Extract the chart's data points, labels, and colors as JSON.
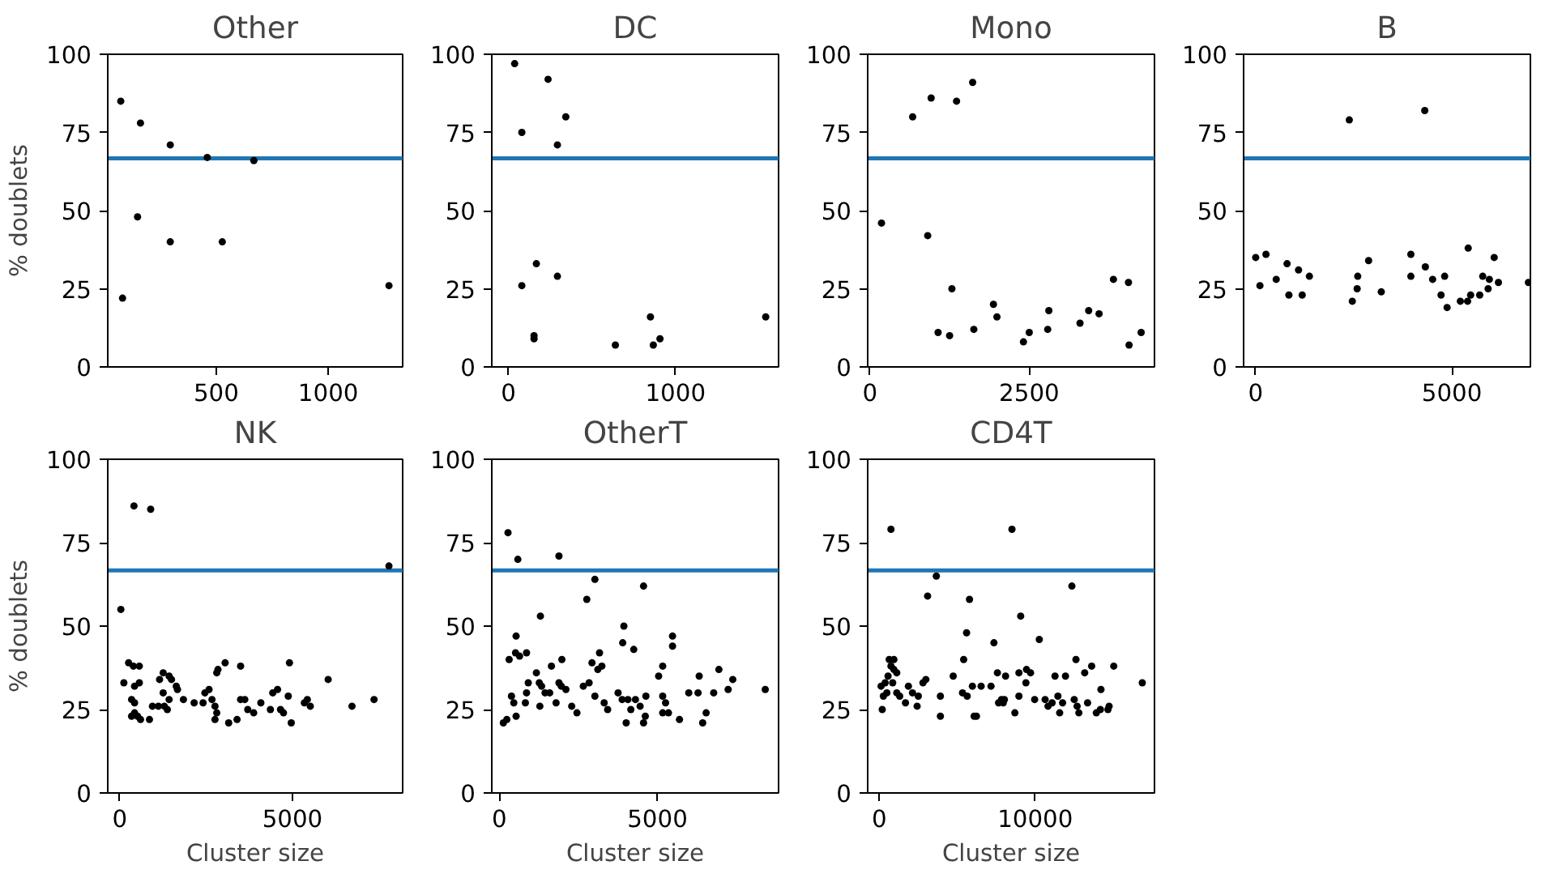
{
  "chart_data": [
    {
      "type": "scatter",
      "title": "Other",
      "ylabel": "% doublets",
      "color": "#000000",
      "marker": "circle",
      "grid": false,
      "xlim": [
        16,
        1332
      ],
      "xticks": [
        500,
        1000
      ],
      "ylim": [
        0,
        100
      ],
      "yticks": [
        0,
        25,
        50,
        75,
        100
      ],
      "ref_lines": [
        {
          "axis": "y",
          "value": 66.7,
          "color": "#1f77b4"
        }
      ],
      "x": [
        74,
        162,
        295,
        460,
        668,
        149,
        295,
        527,
        82,
        1271
      ],
      "values": [
        85,
        78,
        71,
        67,
        66,
        48,
        40,
        40,
        22,
        26
      ]
    },
    {
      "type": "scatter",
      "title": "DC",
      "color": "#000000",
      "marker": "circle",
      "grid": false,
      "xlim": [
        -100,
        1617
      ],
      "xticks": [
        0,
        1000
      ],
      "ylim": [
        0,
        100
      ],
      "yticks": [
        0,
        25,
        50,
        75,
        100
      ],
      "ref_lines": [
        {
          "axis": "y",
          "value": 66.7,
          "color": "#1f77b4"
        }
      ],
      "x": [
        37,
        237,
        343,
        293,
        80,
        167,
        80,
        293,
        153,
        153,
        640,
        850,
        867,
        907,
        1540
      ],
      "values": [
        97,
        92,
        80,
        71,
        75,
        33,
        26,
        29,
        10,
        9,
        7,
        16,
        7,
        9,
        16
      ]
    },
    {
      "type": "scatter",
      "title": "Mono",
      "color": "#000000",
      "marker": "circle",
      "grid": false,
      "xlim": [
        -36,
        4466
      ],
      "xticks": [
        0,
        2500
      ],
      "ylim": [
        0,
        100
      ],
      "yticks": [
        0,
        25,
        50,
        75,
        100
      ],
      "ref_lines": [
        {
          "axis": "y",
          "value": 66.7,
          "color": "#1f77b4"
        }
      ],
      "x": [
        181,
        670,
        960,
        906,
        1359,
        1612,
        1069,
        1250,
        1286,
        1630,
        1938,
        1993,
        2409,
        2500,
        2790,
        2808,
        3297,
        3433,
        3596,
        3822,
        4058,
        4067,
        4257
      ],
      "values": [
        46,
        80,
        86,
        42,
        85,
        91,
        11,
        10,
        25,
        12,
        20,
        16,
        8,
        11,
        12,
        18,
        14,
        18,
        17,
        28,
        27,
        7,
        11
      ]
    },
    {
      "type": "scatter",
      "title": "B",
      "color": "#000000",
      "marker": "circle",
      "grid": false,
      "xlim": [
        -308,
        7000
      ],
      "xticks": [
        0,
        5000
      ],
      "ylim": [
        0,
        100
      ],
      "yticks": [
        0,
        25,
        50,
        75,
        100
      ],
      "ref_lines": [
        {
          "axis": "y",
          "value": 66.7,
          "color": "#1f77b4"
        }
      ],
      "x": [
        0,
        262,
        108,
        523,
        800,
        846,
        1092,
        1185,
        1369,
        2385,
        2462,
        2585,
        2600,
        2877,
        3200,
        3954,
        3954,
        4308,
        4323,
        4508,
        4723,
        4815,
        4877,
        5215,
        5415,
        5400,
        5477,
        5708,
        5785,
        5923,
        5954,
        6077,
        6185,
        6950
      ],
      "values": [
        35,
        36,
        26,
        28,
        33,
        23,
        31,
        23,
        29,
        79,
        21,
        25,
        29,
        34,
        24,
        36,
        29,
        82,
        32,
        28,
        23,
        29,
        19,
        21,
        38,
        21,
        23,
        23,
        29,
        25,
        28,
        35,
        27,
        27
      ]
    },
    {
      "type": "scatter",
      "title": "NK",
      "ylabel": "% doublets",
      "xlabel": "Cluster size",
      "color": "#000000",
      "marker": "circle",
      "grid": false,
      "xlim": [
        -345,
        8190
      ],
      "xticks": [
        0,
        5000
      ],
      "ylim": [
        0,
        100
      ],
      "yticks": [
        0,
        25,
        50,
        75,
        100
      ],
      "ref_lines": [
        {
          "axis": "y",
          "value": 66.7,
          "color": "#1f77b4"
        }
      ],
      "x": [
        414,
        897,
        7793,
        34,
        121,
        259,
        397,
        569,
        431,
        569,
        345,
        431,
        345,
        517,
        603,
        431,
        862,
        948,
        1121,
        1155,
        1259,
        1431,
        1500,
        1259,
        1293,
        1379,
        1431,
        1638,
        1672,
        1845,
        2155,
        2414,
        2466,
        2586,
        2672,
        2759,
        2810,
        2810,
        2759,
        2845,
        3052,
        3155,
        3397,
        3500,
        3500,
        3621,
        3707,
        3879,
        4086,
        4362,
        4431,
        4569,
        4655,
        4741,
        4879,
        4914,
        4966,
        5345,
        5431,
        5517,
        6034,
        6724,
        7362
      ],
      "values": [
        86,
        85,
        68,
        55,
        33,
        39,
        38,
        38,
        32,
        33,
        28,
        27,
        23,
        23,
        22,
        24,
        22,
        26,
        26,
        34,
        36,
        35,
        34,
        30,
        26,
        25,
        28,
        32,
        31,
        28,
        27,
        27,
        30,
        31,
        28,
        26,
        36,
        24,
        22,
        37,
        39,
        21,
        22,
        38,
        28,
        28,
        25,
        24,
        27,
        25,
        30,
        31,
        25,
        24,
        29,
        39,
        21,
        27,
        28,
        26,
        34,
        26,
        28
      ]
    },
    {
      "type": "scatter",
      "title": "OtherT",
      "xlabel": "Cluster size",
      "color": "#000000",
      "marker": "circle",
      "grid": false,
      "xlim": [
        -238,
        8828
      ],
      "xticks": [
        0,
        5000
      ],
      "ylim": [
        0,
        100
      ],
      "yticks": [
        0,
        25,
        50,
        75,
        100
      ],
      "ref_lines": [
        {
          "axis": "y",
          "value": 66.7,
          "color": "#1f77b4"
        }
      ],
      "x": [
        275,
        586,
        1886,
        3022,
        2766,
        4560,
        1300,
        531,
        311,
        513,
        641,
        861,
        128,
        238,
        385,
        458,
        531,
        824,
        861,
        916,
        1172,
        1264,
        1337,
        1447,
        1593,
        1282,
        1648,
        1795,
        1886,
        1978,
        1960,
        2106,
        2289,
        2454,
        2656,
        2839,
        2930,
        3022,
        3114,
        3168,
        3242,
        3315,
        3425,
        3755,
        3901,
        3938,
        3883,
        4066,
        4011,
        4158,
        4250,
        4304,
        4451,
        4560,
        4615,
        4634,
        5037,
        5165,
        5165,
        5256,
        5165,
        5348,
        5476,
        5476,
        5696,
        5989,
        6282,
        6319,
        6429,
        6538,
        6777,
        6941,
        7234,
        7381,
        8407
      ],
      "values": [
        78,
        70,
        71,
        64,
        58,
        62,
        53,
        47,
        40,
        42,
        41,
        42,
        21,
        22,
        29,
        27,
        23,
        27,
        30,
        33,
        36,
        33,
        32,
        30,
        30,
        26,
        38,
        27,
        33,
        40,
        32,
        31,
        26,
        24,
        32,
        33,
        39,
        29,
        37,
        42,
        38,
        27,
        25,
        30,
        45,
        50,
        28,
        28,
        21,
        25,
        43,
        28,
        26,
        21,
        23,
        29,
        35,
        38,
        29,
        27,
        24,
        24,
        47,
        44,
        22,
        30,
        30,
        35,
        21,
        24,
        30,
        37,
        31,
        34,
        31
      ]
    },
    {
      "type": "scatter",
      "title": "CD4T",
      "xlabel": "Cluster size",
      "color": "#000000",
      "marker": "circle",
      "grid": false,
      "xlim": [
        -746,
        17649
      ],
      "xticks": [
        0,
        10000
      ],
      "ylim": [
        0,
        100
      ],
      "yticks": [
        0,
        25,
        50,
        75,
        100
      ],
      "ref_lines": [
        {
          "axis": "y",
          "value": 66.7,
          "color": "#1f77b4"
        }
      ],
      "x": [
        746,
        8507,
        3657,
        3097,
        5784,
        12351,
        9067,
        5597,
        7351,
        10261,
        112,
        187,
        261,
        373,
        485,
        560,
        634,
        933,
        746,
        933,
        1119,
        858,
        1119,
        1306,
        1679,
        1866,
        2127,
        2425,
        2500,
        2799,
        2985,
        3918,
        4739,
        3918,
        5336,
        5410,
        5970,
        6082,
        6231,
        5634,
        6530,
        7164,
        7575,
        7649,
        7836,
        8022,
        8097,
        7948,
        8694,
        8955,
        8955,
        9403,
        9440,
        9701,
        9963,
        10634,
        10821,
        11082,
        11269,
        11455,
        11567,
        11754,
        11940,
        12500,
        12687,
        12799,
        12612,
        13172,
        13358,
        13619,
        13918,
        14216,
        14179,
        14739,
        15037,
        14664,
        16866
      ],
      "values": [
        79,
        79,
        65,
        59,
        58,
        62,
        53,
        48,
        45,
        46,
        32,
        25,
        29,
        33,
        30,
        35,
        40,
        40,
        38,
        37,
        36,
        33,
        30,
        29,
        27,
        32,
        30,
        26,
        29,
        33,
        34,
        23,
        35,
        29,
        30,
        40,
        32,
        23,
        23,
        29,
        32,
        32,
        36,
        27,
        28,
        28,
        35,
        27,
        24,
        29,
        36,
        33,
        37,
        36,
        28,
        28,
        26,
        27,
        35,
        29,
        24,
        27,
        35,
        28,
        26,
        24,
        40,
        36,
        27,
        38,
        24,
        31,
        25,
        26,
        38,
        25,
        33
      ]
    }
  ]
}
